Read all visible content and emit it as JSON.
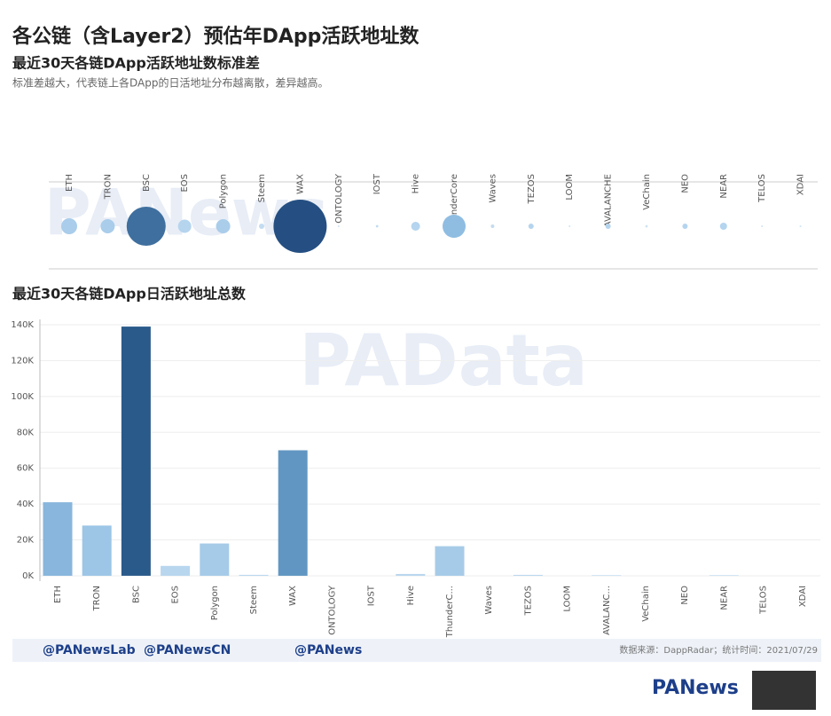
{
  "title": "各公链（含Layer2）预估年DApp活跃地址数",
  "watermarks": [
    "PANews",
    "PAData"
  ],
  "chart_data": [
    {
      "type": "bubble",
      "title": "最近30天各链DApp活跃地址数标准差",
      "subtitle": "标准差越大，代表链上各DApp的日活地址分布越离散，差异越高。",
      "categories": [
        "ETH",
        "TRON",
        "BSC",
        "EOS",
        "Polygon",
        "Steem",
        "WAX",
        "ONTOLOGY",
        "IOST",
        "Hive",
        "ThunderCore",
        "Waves",
        "TEZOS",
        "LOOM",
        "AVALANCHE",
        "VeChain",
        "NEO",
        "NEAR",
        "TELOS",
        "XDAI"
      ],
      "sizes": [
        81,
        64,
        484,
        56,
        64,
        9,
        900,
        1,
        2,
        25,
        169,
        4,
        9,
        1,
        9,
        2,
        9,
        16,
        1,
        1
      ],
      "colors": [
        "#a9cdea",
        "#a9cdea",
        "#3f6f9e",
        "#b5d4ee",
        "#aacdea",
        "#c3dcf0",
        "#254f82",
        "#d0e3f3",
        "#c3dcf0",
        "#b5d4ee",
        "#8fbde2",
        "#c3dcf0",
        "#b5d4ee",
        "#d0e3f3",
        "#b5d4ee",
        "#d0e3f3",
        "#b5d4ee",
        "#b5d4ee",
        "#d0e3f3",
        "#d0e3f3"
      ]
    },
    {
      "type": "bar",
      "title": "最近30天各链DApp日活跃地址总数",
      "categories": [
        "ETH",
        "TRON",
        "BSC",
        "EOS",
        "Polygon",
        "Steem",
        "WAX",
        "ONTOLOGY",
        "IOST",
        "Hive",
        "ThunderC...",
        "Waves",
        "TEZOS",
        "LOOM",
        "AVALANC...",
        "VeChain",
        "NEO",
        "NEAR",
        "TELOS",
        "XDAI"
      ],
      "values": [
        41000,
        28000,
        139000,
        5500,
        18000,
        500,
        70000,
        0,
        0,
        1000,
        16500,
        0,
        500,
        0,
        300,
        0,
        0,
        300,
        0,
        0
      ],
      "colors": [
        "#88b6dc",
        "#9cc5e6",
        "#2a5a8a",
        "#b8d6ee",
        "#a6cbe8",
        "#b8d6ee",
        "#6196c2",
        "#b8d6ee",
        "#b8d6ee",
        "#b8d6ee",
        "#a6cbe8",
        "#b8d6ee",
        "#b8d6ee",
        "#b8d6ee",
        "#b8d6ee",
        "#b8d6ee",
        "#b8d6ee",
        "#b8d6ee",
        "#b8d6ee",
        "#b8d6ee"
      ],
      "ylim": [
        -3000,
        143000
      ],
      "yticks": [
        {
          "value": 0,
          "label": "0K"
        },
        {
          "value": 20000,
          "label": "20K"
        },
        {
          "value": 40000,
          "label": "40K"
        },
        {
          "value": 60000,
          "label": "60K"
        },
        {
          "value": 80000,
          "label": "80K"
        },
        {
          "value": 100000,
          "label": "100K"
        },
        {
          "value": 120000,
          "label": "120K"
        },
        {
          "value": 140000,
          "label": "140K"
        }
      ],
      "grid": true
    }
  ],
  "footer": {
    "twitter1": "@PANewsLab",
    "twitter2": "@PANewsCN",
    "weibo": "@PANews",
    "source": "数据来源：DappRadar；统计时间：2021/07/29",
    "logo": "PANews"
  }
}
